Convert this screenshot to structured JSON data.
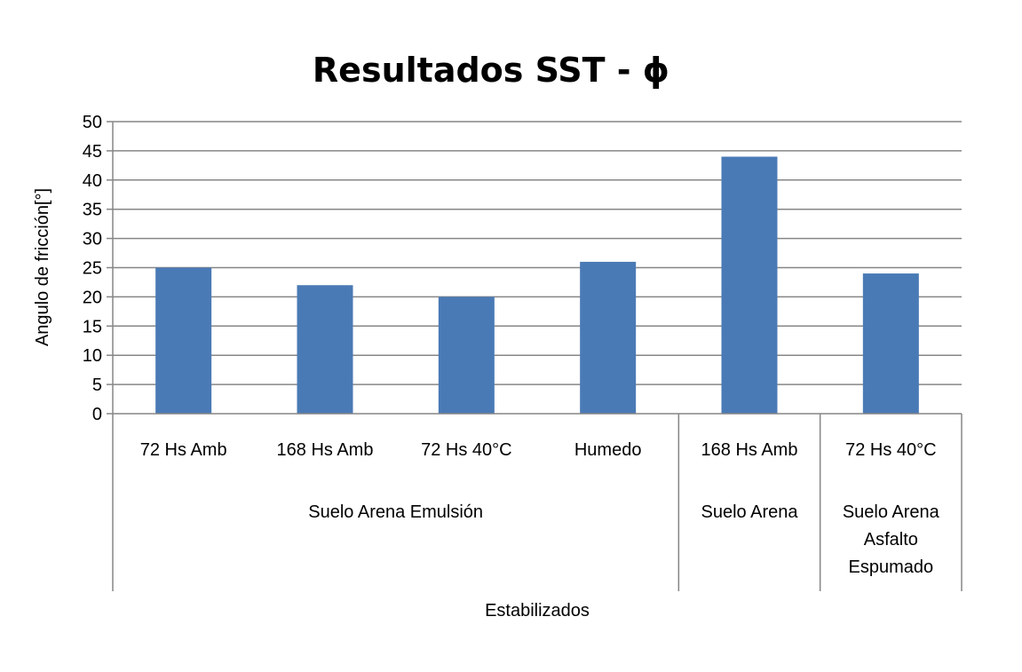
{
  "chart_data": {
    "type": "bar",
    "title": "Resultados SST - ϕ",
    "ylabel": "Angulo de fricción[°]",
    "xlabel": "Estabilizados",
    "ylim": [
      0,
      50
    ],
    "yticks": [
      "0",
      "5",
      "10",
      "15",
      "20",
      "25",
      "30",
      "35",
      "40",
      "45",
      "50"
    ],
    "grid": true,
    "categories": [
      "72 Hs Amb",
      "168 Hs Amb",
      "72 Hs 40°C",
      "Humedo",
      "168 Hs Amb",
      "72 Hs 40°C"
    ],
    "values": [
      25,
      22,
      20,
      26,
      44,
      24
    ],
    "bar_color": "#4a7ab5",
    "groups": [
      {
        "label_lines": [
          "Suelo Arena Emulsión"
        ],
        "count": 4
      },
      {
        "label_lines": [
          "Suelo Arena"
        ],
        "count": 1
      },
      {
        "label_lines": [
          "Suelo Arena",
          "Asfalto",
          "Espumado"
        ],
        "count": 1
      }
    ]
  }
}
